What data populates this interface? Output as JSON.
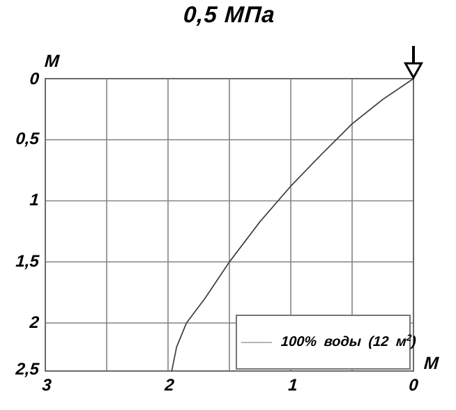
{
  "title": "0,5 МПа",
  "y_axis": {
    "unit": "М",
    "ticks": [
      "0",
      "0,5",
      "1",
      "1,5",
      "2",
      "2,5"
    ]
  },
  "x_axis": {
    "unit": "М",
    "ticks": [
      "3",
      "2",
      "1",
      "0"
    ]
  },
  "legend": {
    "label_prefix": "100% воды (12 м",
    "label_sup": "2",
    "label_suffix": ")"
  },
  "colors": {
    "grid": "#848484",
    "border": "#6a6a6a",
    "curve": "#3d3d3d",
    "legend_sample": "#b5b5b5",
    "arrow": "#000000",
    "text": "#000000"
  },
  "chart_data": {
    "type": "line",
    "title": "0,5 МПа",
    "xlabel": "М",
    "ylabel": "М",
    "xlim": [
      3,
      0
    ],
    "ylim": [
      0,
      2.5
    ],
    "x_axis_direction": "reversed, 3 at left to 0 at right",
    "y_axis_direction": "inverted, 0 at top to 2,5 at bottom",
    "grid": true,
    "x_gridlines": [
      0,
      0.5,
      1,
      1.5,
      2,
      2.5,
      3
    ],
    "y_gridlines": [
      0,
      0.5,
      1,
      1.5,
      2,
      2.5
    ],
    "legend_position": "bottom-right inside plot",
    "series": [
      {
        "name": "100% воды (12 м²)",
        "points": [
          [
            0,
            0
          ],
          [
            0.25,
            0.17
          ],
          [
            0.5,
            0.37
          ],
          [
            0.75,
            0.62
          ],
          [
            1.0,
            0.88
          ],
          [
            1.25,
            1.17
          ],
          [
            1.5,
            1.5
          ],
          [
            1.7,
            1.8
          ],
          [
            1.85,
            2.0
          ],
          [
            1.93,
            2.25
          ],
          [
            1.97,
            2.5
          ]
        ]
      }
    ],
    "annotations": [
      {
        "type": "down-arrow-marker",
        "x": 0,
        "y": 0
      }
    ]
  }
}
